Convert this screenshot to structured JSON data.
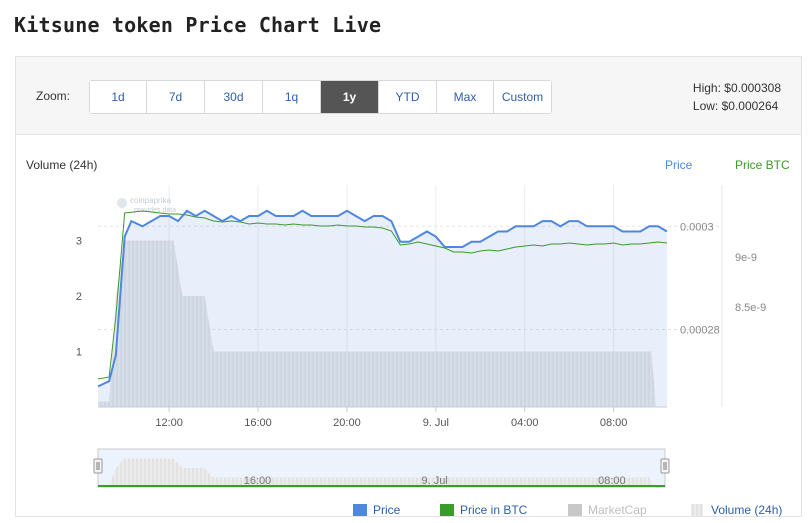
{
  "page": {
    "title": "Kitsune token Price Chart Live"
  },
  "toolbar": {
    "zoom_label": "Zoom:",
    "zoom_options": [
      {
        "label": "1d",
        "active": false
      },
      {
        "label": "7d",
        "active": false
      },
      {
        "label": "30d",
        "active": false
      },
      {
        "label": "1q",
        "active": false
      },
      {
        "label": "1y",
        "active": true
      },
      {
        "label": "YTD",
        "active": false
      },
      {
        "label": "Max",
        "active": false
      },
      {
        "label": "Custom",
        "active": false
      }
    ],
    "high": "High: $0.000308",
    "low": "Low: $0.000264"
  },
  "chart_data": {
    "type": "line",
    "watermark": "coinpaprika\nprovides data",
    "left_axis_title": "Volume (24h)",
    "price_axis_title": "Price",
    "btc_axis_title": "Price BTC",
    "x_ticks": [
      "12:00",
      "16:00",
      "20:00",
      "9. Jul",
      "04:00",
      "08:00"
    ],
    "volume_ticks": [
      {
        "v": 1,
        "label": "1"
      },
      {
        "v": 2,
        "label": "2"
      },
      {
        "v": 3,
        "label": "3"
      }
    ],
    "price_ticks": [
      {
        "v": 0.00028,
        "label": "0.00028"
      },
      {
        "v": 0.0003,
        "label": "0.0003"
      }
    ],
    "btc_ticks": [
      {
        "v": 8.5e-09,
        "label": "8.5e-9"
      },
      {
        "v": 9e-09,
        "label": "9e-9"
      }
    ],
    "x_range_hours": [
      8.8,
      34.4
    ],
    "volume_range": [
      0,
      4
    ],
    "price_range": [
      0.000265,
      0.000308
    ],
    "btc_range": [
      7.5e-09,
      9.72e-09
    ],
    "series": [
      {
        "name": "Price",
        "color": "#4f86e0",
        "points": [
          [
            8.8,
            0.000269
          ],
          [
            9.3,
            0.00027
          ],
          [
            9.6,
            0.000275
          ],
          [
            10.0,
            0.000298
          ],
          [
            10.3,
            0.000301
          ],
          [
            10.8,
            0.0003
          ],
          [
            11.2,
            0.000301
          ],
          [
            11.6,
            0.000302
          ],
          [
            12.0,
            0.000302
          ],
          [
            12.4,
            0.000301
          ],
          [
            12.8,
            0.000303
          ],
          [
            13.2,
            0.000302
          ],
          [
            13.6,
            0.000303
          ],
          [
            14.0,
            0.000302
          ],
          [
            14.4,
            0.000301
          ],
          [
            14.8,
            0.000302
          ],
          [
            15.2,
            0.000301
          ],
          [
            15.6,
            0.000302
          ],
          [
            16.0,
            0.000302
          ],
          [
            16.4,
            0.000303
          ],
          [
            16.8,
            0.000302
          ],
          [
            17.2,
            0.000302
          ],
          [
            17.6,
            0.000302
          ],
          [
            18.0,
            0.000303
          ],
          [
            18.4,
            0.000302
          ],
          [
            18.8,
            0.000302
          ],
          [
            19.2,
            0.000302
          ],
          [
            19.6,
            0.000302
          ],
          [
            20.0,
            0.000303
          ],
          [
            20.4,
            0.000302
          ],
          [
            20.8,
            0.000301
          ],
          [
            21.2,
            0.000302
          ],
          [
            21.6,
            0.000302
          ],
          [
            22.0,
            0.000301
          ],
          [
            22.4,
            0.000297
          ],
          [
            22.8,
            0.000297
          ],
          [
            23.2,
            0.000298
          ],
          [
            23.6,
            0.000299
          ],
          [
            24.0,
            0.000298
          ],
          [
            24.4,
            0.000296
          ],
          [
            24.8,
            0.000296
          ],
          [
            25.2,
            0.000296
          ],
          [
            25.6,
            0.000297
          ],
          [
            26.0,
            0.000297
          ],
          [
            26.4,
            0.000298
          ],
          [
            26.8,
            0.000299
          ],
          [
            27.2,
            0.000299
          ],
          [
            27.6,
            0.0003
          ],
          [
            28.0,
            0.0003
          ],
          [
            28.4,
            0.0003
          ],
          [
            28.8,
            0.000301
          ],
          [
            29.2,
            0.000301
          ],
          [
            29.6,
            0.0003
          ],
          [
            30.0,
            0.000301
          ],
          [
            30.4,
            0.000301
          ],
          [
            30.8,
            0.0003
          ],
          [
            31.2,
            0.0003
          ],
          [
            31.6,
            0.0003
          ],
          [
            32.0,
            0.0003
          ],
          [
            32.4,
            0.000299
          ],
          [
            32.8,
            0.000299
          ],
          [
            33.2,
            0.000299
          ],
          [
            33.6,
            0.0003
          ],
          [
            34.0,
            0.0003
          ],
          [
            34.4,
            0.000299
          ]
        ]
      },
      {
        "name": "Price in BTC",
        "color": "#3a9a2a",
        "points": [
          [
            8.8,
            7.78e-09
          ],
          [
            9.3,
            7.8e-09
          ],
          [
            9.6,
            8.4e-09
          ],
          [
            10.0,
            9.44e-09
          ],
          [
            10.4,
            9.45e-09
          ],
          [
            10.8,
            9.46e-09
          ],
          [
            11.2,
            9.45e-09
          ],
          [
            11.6,
            9.44e-09
          ],
          [
            12.0,
            9.43e-09
          ],
          [
            12.4,
            9.43e-09
          ],
          [
            12.8,
            9.42e-09
          ],
          [
            13.2,
            9.4e-09
          ],
          [
            13.6,
            9.39e-09
          ],
          [
            14.0,
            9.36e-09
          ],
          [
            14.4,
            9.35e-09
          ],
          [
            14.8,
            9.36e-09
          ],
          [
            15.2,
            9.35e-09
          ],
          [
            15.6,
            9.33e-09
          ],
          [
            16.0,
            9.34e-09
          ],
          [
            16.4,
            9.33e-09
          ],
          [
            16.8,
            9.33e-09
          ],
          [
            17.2,
            9.32e-09
          ],
          [
            17.6,
            9.33e-09
          ],
          [
            18.0,
            9.32e-09
          ],
          [
            18.4,
            9.32e-09
          ],
          [
            18.8,
            9.31e-09
          ],
          [
            19.2,
            9.31e-09
          ],
          [
            19.6,
            9.32e-09
          ],
          [
            20.0,
            9.31e-09
          ],
          [
            20.4,
            9.31e-09
          ],
          [
            20.8,
            9.3e-09
          ],
          [
            21.2,
            9.3e-09
          ],
          [
            21.6,
            9.29e-09
          ],
          [
            22.0,
            9.26e-09
          ],
          [
            22.4,
            9.12e-09
          ],
          [
            22.8,
            9.13e-09
          ],
          [
            23.2,
            9.15e-09
          ],
          [
            23.6,
            9.13e-09
          ],
          [
            24.0,
            9.11e-09
          ],
          [
            24.4,
            9.09e-09
          ],
          [
            24.8,
            9.05e-09
          ],
          [
            25.2,
            9.05e-09
          ],
          [
            25.6,
            9.04e-09
          ],
          [
            26.0,
            9.06e-09
          ],
          [
            26.4,
            9.07e-09
          ],
          [
            26.8,
            9.06e-09
          ],
          [
            27.2,
            9.08e-09
          ],
          [
            27.6,
            9.1e-09
          ],
          [
            28.0,
            9.11e-09
          ],
          [
            28.4,
            9.12e-09
          ],
          [
            28.8,
            9.11e-09
          ],
          [
            29.2,
            9.13e-09
          ],
          [
            29.6,
            9.13e-09
          ],
          [
            30.0,
            9.14e-09
          ],
          [
            30.4,
            9.13e-09
          ],
          [
            30.8,
            9.12e-09
          ],
          [
            31.2,
            9.13e-09
          ],
          [
            31.6,
            9.13e-09
          ],
          [
            32.0,
            9.14e-09
          ],
          [
            32.4,
            9.12e-09
          ],
          [
            32.8,
            9.13e-09
          ],
          [
            33.2,
            9.13e-09
          ],
          [
            33.6,
            9.14e-09
          ],
          [
            34.0,
            9.15e-09
          ],
          [
            34.4,
            9.14e-09
          ]
        ]
      },
      {
        "name": "Volume (24h)",
        "color": "#d0d0d0",
        "points": [
          [
            8.8,
            0.1
          ],
          [
            9.3,
            0.1
          ],
          [
            9.6,
            2.0
          ],
          [
            10.0,
            3.0
          ],
          [
            10.6,
            3.0
          ],
          [
            11.4,
            3.0
          ],
          [
            12.2,
            3.0
          ],
          [
            12.6,
            2.0
          ],
          [
            13.6,
            2.0
          ],
          [
            14.0,
            1.0
          ],
          [
            16.0,
            1.0
          ],
          [
            20.0,
            1.0
          ],
          [
            24.0,
            1.0
          ],
          [
            28.0,
            1.0
          ],
          [
            32.0,
            1.0
          ],
          [
            33.7,
            1.0
          ],
          [
            33.9,
            0.0
          ]
        ]
      }
    ],
    "navigator_ticks": [
      "16:00",
      "9. Jul",
      "08:00"
    ],
    "legend": [
      {
        "name": "Price",
        "color": "#4f86e0"
      },
      {
        "name": "Price in BTC",
        "color": "#3a9a2a"
      },
      {
        "name": "MarketCap",
        "color": "#c8c8c8",
        "disabled": true
      },
      {
        "name": "Volume (24h)",
        "color": "#e6e6e6"
      }
    ]
  }
}
